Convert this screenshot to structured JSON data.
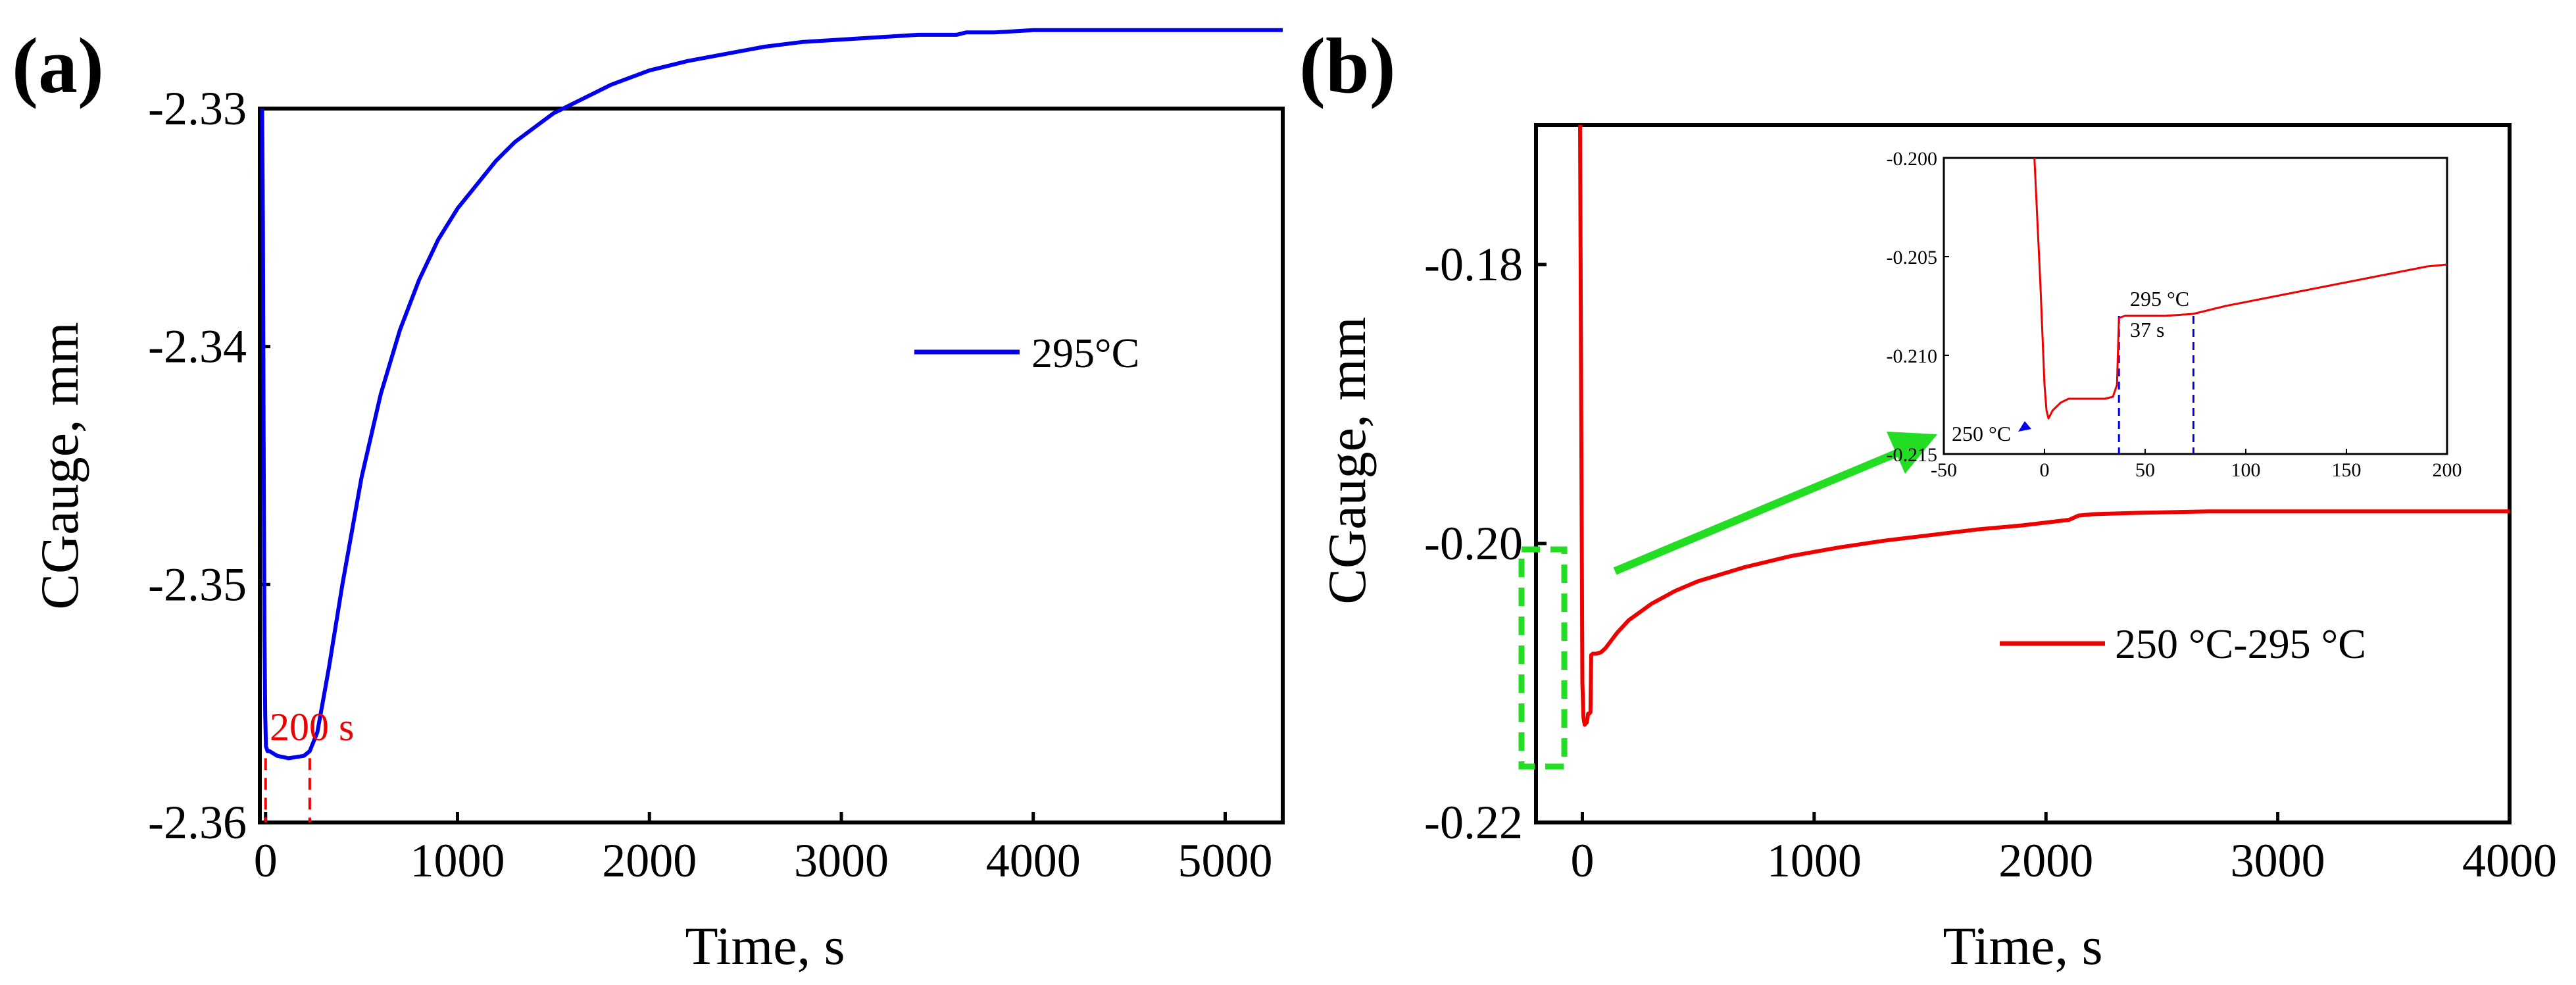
{
  "colors": {
    "series_a": "#0000ee",
    "series_b": "#ee0000",
    "highlight": "#22dd22",
    "marker_red": "#ee0000",
    "marker_blue": "#0000ee"
  },
  "chart_data": [
    {
      "panel": "(a)",
      "type": "line",
      "title": "",
      "xlabel": "Time, s",
      "ylabel": "CGauge, mm",
      "xlim": [
        -30,
        5300
      ],
      "ylim": [
        -2.36,
        -2.33
      ],
      "xticks": [
        0,
        1000,
        2000,
        3000,
        4000,
        5000
      ],
      "yticks": [
        -2.36,
        -2.35,
        -2.34,
        -2.33
      ],
      "xtick_labels": [
        "0",
        "1000",
        "2000",
        "3000",
        "4000",
        "5000"
      ],
      "ytick_labels": [
        "-2.36",
        "-2.35",
        "-2.34",
        "-2.33"
      ],
      "legend": {
        "position": "right-middle",
        "entries": [
          "295°C"
        ]
      },
      "annotation": {
        "text": "200 s",
        "x_start": 0,
        "x_end": 230
      },
      "series": [
        {
          "name": "295°C",
          "x": [
            -18,
            -14,
            -10,
            -6,
            -2,
            2,
            10,
            20,
            60,
            120,
            200,
            230,
            270,
            330,
            400,
            500,
            600,
            700,
            800,
            900,
            1000,
            1100,
            1200,
            1300,
            1400,
            1500,
            1600,
            1800,
            2000,
            2200,
            2400,
            2600,
            2800,
            3000,
            3200,
            3400,
            3600,
            3650,
            3800,
            4000,
            4300,
            4600,
            5000,
            5300
          ],
          "y": [
            -2.33,
            -2.335,
            -2.344,
            -2.352,
            -2.3555,
            -2.3568,
            -2.357,
            -2.357,
            -2.3572,
            -2.3573,
            -2.3572,
            -2.357,
            -2.3562,
            -2.3535,
            -2.35,
            -2.3455,
            -2.342,
            -2.3393,
            -2.3372,
            -2.3355,
            -2.3342,
            -2.3332,
            -2.3322,
            -2.3314,
            -2.3308,
            -2.3302,
            -2.3298,
            -2.329,
            -2.3284,
            -2.328,
            -2.3277,
            -2.3274,
            -2.3272,
            -2.3271,
            -2.327,
            -2.3269,
            -2.3269,
            -2.3268,
            -2.3268,
            -2.3267,
            -2.3267,
            -2.3267,
            -2.3267,
            -2.3267
          ]
        }
      ]
    },
    {
      "panel": "(b)",
      "type": "line",
      "title": "",
      "xlabel": "Time, s",
      "ylabel": "CGauge, mm",
      "xlim": [
        -200,
        4000
      ],
      "ylim": [
        -0.22,
        -0.17
      ],
      "xticks": [
        0,
        1000,
        2000,
        3000,
        4000
      ],
      "yticks": [
        -0.22,
        -0.2,
        -0.18
      ],
      "xtick_labels": [
        "0",
        "1000",
        "2000",
        "3000",
        "4000"
      ],
      "ytick_labels": [
        "-0.22",
        "-0.20",
        "-0.18"
      ],
      "legend": {
        "position": "right-middle",
        "entries": [
          "250 °C-295 °C"
        ]
      },
      "series": [
        {
          "name": "250 °C-295 °C",
          "x": [
            -10,
            -5,
            0,
            5,
            10,
            20,
            25,
            30,
            35,
            38,
            45,
            60,
            80,
            100,
            150,
            200,
            300,
            400,
            500,
            700,
            900,
            1100,
            1300,
            1500,
            1700,
            1900,
            2100,
            2140,
            2200,
            2400,
            2700,
            3000,
            3500,
            4000
          ],
          "y": [
            -0.17,
            -0.19,
            -0.21,
            -0.2125,
            -0.213,
            -0.2128,
            -0.2122,
            -0.2122,
            -0.2121,
            -0.208,
            -0.2079,
            -0.2079,
            -0.2078,
            -0.2075,
            -0.2064,
            -0.2055,
            -0.2043,
            -0.2034,
            -0.2027,
            -0.2017,
            -0.2009,
            -0.2003,
            -0.1998,
            -0.1994,
            -0.199,
            -0.1987,
            -0.1983,
            -0.198,
            -0.1979,
            -0.1978,
            -0.1977,
            -0.1977,
            -0.1977,
            -0.1977
          ]
        }
      ],
      "inset": {
        "xlim": [
          -50,
          200
        ],
        "ylim": [
          -0.215,
          -0.2
        ],
        "xticks": [
          -50,
          0,
          50,
          100,
          150,
          200
        ],
        "yticks": [
          -0.215,
          -0.21,
          -0.205,
          -0.2
        ],
        "xtick_labels": [
          "-50",
          "0",
          "50",
          "100",
          "150",
          "200"
        ],
        "ytick_labels": [
          "-0.215",
          "-0.210",
          "-0.205",
          "-0.200"
        ],
        "annotations": [
          "250 °C",
          "295 °C",
          "37 s"
        ],
        "markers_x": [
          37,
          74
        ],
        "series": {
          "x": [
            -5,
            -2,
            0,
            1,
            2,
            4,
            8,
            12,
            16,
            20,
            25,
            30,
            34,
            36,
            37,
            40,
            50,
            60,
            74,
            90,
            110,
            130,
            150,
            170,
            190,
            200
          ],
          "y": [
            -0.2,
            -0.2065,
            -0.2115,
            -0.2128,
            -0.2132,
            -0.2128,
            -0.2124,
            -0.2122,
            -0.2122,
            -0.2122,
            -0.2122,
            -0.2122,
            -0.2121,
            -0.2115,
            -0.2081,
            -0.208,
            -0.208,
            -0.208,
            -0.2079,
            -0.2075,
            -0.2071,
            -0.2067,
            -0.2063,
            -0.2059,
            -0.2055,
            -0.2054
          ]
        }
      }
    }
  ]
}
